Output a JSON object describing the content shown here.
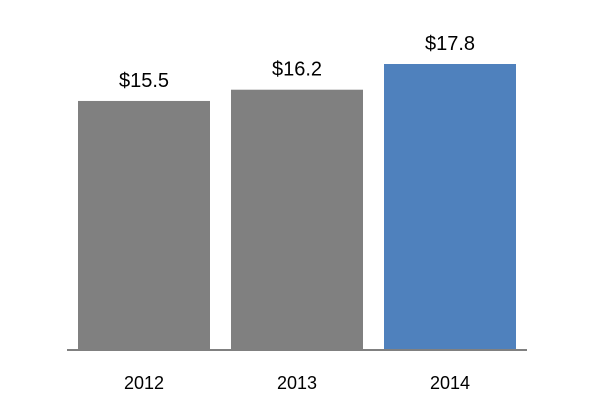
{
  "chart_data": {
    "type": "bar",
    "categories": [
      "2012",
      "2013",
      "2014"
    ],
    "values": [
      15.5,
      16.2,
      17.8
    ],
    "data_labels": [
      "$15.5",
      "$16.2",
      "$17.8"
    ],
    "title": "",
    "xlabel": "",
    "ylabel": "",
    "ylim": [
      0,
      17.8
    ],
    "grid": false,
    "legend": "none",
    "bar_colors": [
      "#808080",
      "#808080",
      "#4f81bd"
    ],
    "axis_color": "#808080"
  }
}
